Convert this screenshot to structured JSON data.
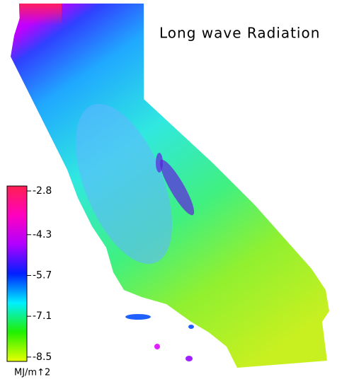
{
  "title": "Long wave Radiation",
  "legend": {
    "unit": "MJ/m↑2",
    "range": [
      -8.65,
      -2.63
    ],
    "ticks": [
      -2.8,
      -4.3,
      -5.7,
      -7.1,
      -8.5
    ],
    "colors": [
      "#e8ff00",
      "#20f000",
      "#00f0ff",
      "#0020ff",
      "#b000ff",
      "#ff00c0",
      "#ff2050"
    ]
  }
}
